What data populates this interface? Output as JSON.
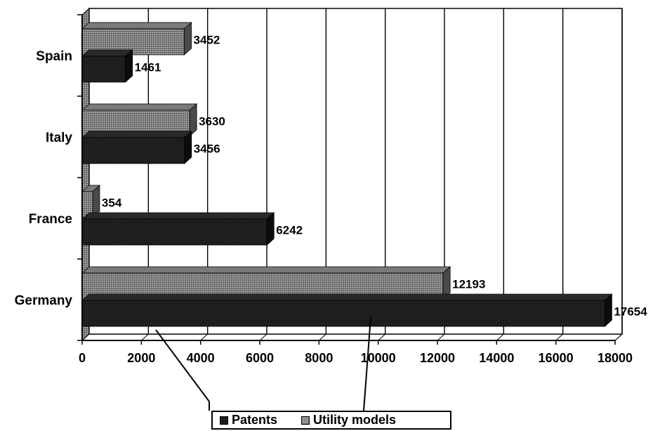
{
  "chart_data": {
    "type": "bar",
    "orientation": "horizontal",
    "three_d": true,
    "categories": [
      "Spain",
      "Italy",
      "France",
      "Germany"
    ],
    "series": [
      {
        "name": "Patents",
        "values": [
          1461,
          3456,
          6242,
          17654
        ],
        "color": "#1e1e1e"
      },
      {
        "name": "Utility models",
        "values": [
          3452,
          3630,
          354,
          12193
        ],
        "color": "#6a6a6a"
      }
    ],
    "data_labels": {
      "Patents": [
        "1461",
        "3456",
        "6242",
        "17654"
      ],
      "Utility models": [
        "3452",
        "3630",
        "354",
        "12193"
      ]
    },
    "xlim": [
      0,
      18000
    ],
    "xticks": [
      0,
      2000,
      4000,
      6000,
      8000,
      10000,
      12000,
      14000,
      16000,
      18000
    ],
    "xtick_labels": [
      "0",
      "2000",
      "4000",
      "6000",
      "8000",
      "10000",
      "12000",
      "14000",
      "16000",
      "18000"
    ],
    "grid": true,
    "legend_position": "bottom",
    "title": "",
    "xlabel": "",
    "ylabel": ""
  },
  "legend": {
    "patents_label": "Patents",
    "utility_label": "Utility models"
  }
}
